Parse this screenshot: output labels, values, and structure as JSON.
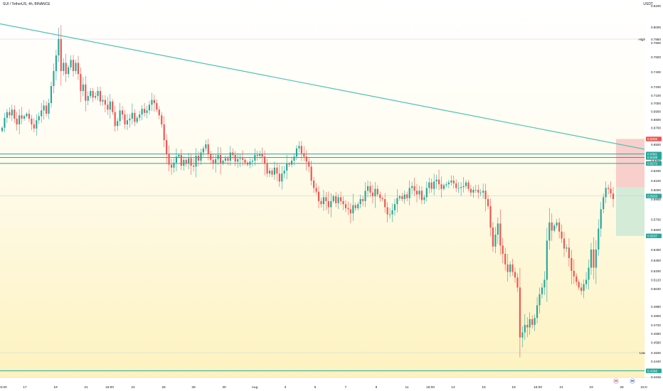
{
  "header": {
    "symbol": "SUI / TetherUS, 4h, BINANCE",
    "currency": "USDT"
  },
  "chart_data": {
    "type": "candlestick",
    "x_tick_labels": [
      "5:00",
      "17",
      "19",
      "21",
      "15:00",
      "24",
      "26",
      "28",
      "30",
      "Aug",
      "3",
      "5",
      "7",
      "9",
      "11",
      "15:00",
      "14",
      "16",
      "18",
      "15:00",
      "21",
      "23",
      "25",
      "15:0"
    ],
    "y_tick_labels": [
      "0.8200",
      "0.8000",
      "0.7850",
      "0.7800",
      "0.7600",
      "0.7400",
      "0.7200",
      "0.7100",
      "0.7000",
      "0.6900",
      "0.6800",
      "0.6700",
      "0.6500",
      "0.6400",
      "0.6300",
      "0.6200",
      "0.6100",
      "0.6000",
      "0.5900",
      "0.5700",
      "0.5600",
      "0.5400",
      "0.5300",
      "0.5200",
      "0.5120",
      "0.5040",
      "0.4880",
      "0.4800",
      "0.4720",
      "0.4650",
      "0.4580",
      "0.4500",
      "0.4440",
      "0.4370",
      "0.4315"
    ],
    "y_range": [
      0.4315,
      0.82
    ],
    "markers": {
      "high": {
        "label": "High",
        "value": 0.785
      },
      "low": {
        "label": "Low",
        "value": 0.45
      }
    },
    "price_badges": [
      {
        "value": "0.6565",
        "color": "#ef5350"
      },
      {
        "value": "0.6381",
        "color": "#26a69a"
      },
      {
        "value": "0.6339",
        "color": "#26a69a"
      },
      {
        "value": "0.6272",
        "color": "#26a69a"
      },
      {
        "value": "0.5933",
        "color": "#26a69a"
      },
      {
        "value": "0.5537",
        "color": "#26a69a"
      },
      {
        "value": "0.4366",
        "color": "#26a69a"
      }
    ],
    "position": {
      "entry": 0.6025,
      "stop": 0.6565,
      "target": 0.5537
    },
    "horizontal_levels": [
      0.6381,
      0.6339,
      0.6272,
      0.4366
    ],
    "trendline": {
      "start_value": 0.803,
      "end_value": 0.644
    },
    "colors": {
      "up": "#26a69a",
      "down": "#ef5350",
      "trendline": "#4ec2b6",
      "level": "#26a69a",
      "stop_zone": "#f7c7c5",
      "target_zone": "#cfe9d6"
    },
    "closes": [
      0.67,
      0.682,
      0.689,
      0.685,
      0.692,
      0.681,
      0.674,
      0.685,
      0.681,
      0.684,
      0.687,
      0.681,
      0.674,
      0.669,
      0.679,
      0.684,
      0.691,
      0.697,
      0.687,
      0.7,
      0.721,
      0.741,
      0.762,
      0.785,
      0.741,
      0.752,
      0.737,
      0.746,
      0.756,
      0.741,
      0.752,
      0.737,
      0.715,
      0.723,
      0.703,
      0.709,
      0.715,
      0.707,
      0.709,
      0.715,
      0.702,
      0.704,
      0.698,
      0.692,
      0.702,
      0.689,
      0.672,
      0.678,
      0.691,
      0.686,
      0.674,
      0.679,
      0.681,
      0.688,
      0.677,
      0.682,
      0.686,
      0.693,
      0.688,
      0.691,
      0.698,
      0.704,
      0.7,
      0.692,
      0.685,
      0.674,
      0.655,
      0.638,
      0.626,
      0.623,
      0.628,
      0.635,
      0.637,
      0.625,
      0.631,
      0.627,
      0.633,
      0.625,
      0.624,
      0.636,
      0.63,
      0.64,
      0.645,
      0.65,
      0.638,
      0.631,
      0.627,
      0.632,
      0.637,
      0.627,
      0.63,
      0.633,
      0.63,
      0.64,
      0.637,
      0.629,
      0.632,
      0.633,
      0.631,
      0.628,
      0.626,
      0.629,
      0.63,
      0.637,
      0.636,
      0.638,
      0.635,
      0.627,
      0.617,
      0.62,
      0.616,
      0.623,
      0.617,
      0.609,
      0.617,
      0.62,
      0.627,
      0.626,
      0.63,
      0.635,
      0.645,
      0.648,
      0.639,
      0.635,
      0.629,
      0.624,
      0.61,
      0.602,
      0.598,
      0.588,
      0.585,
      0.592,
      0.588,
      0.582,
      0.588,
      0.593,
      0.586,
      0.592,
      0.588,
      0.585,
      0.581,
      0.58,
      0.576,
      0.584,
      0.581,
      0.585,
      0.59,
      0.588,
      0.599,
      0.604,
      0.597,
      0.593,
      0.601,
      0.595,
      0.591,
      0.59,
      0.582,
      0.575,
      0.575,
      0.579,
      0.585,
      0.591,
      0.593,
      0.59,
      0.595,
      0.591,
      0.602,
      0.604,
      0.599,
      0.595,
      0.599,
      0.589,
      0.592,
      0.602,
      0.608,
      0.601,
      0.609,
      0.611,
      0.606,
      0.601,
      0.605,
      0.606,
      0.608,
      0.61,
      0.607,
      0.602,
      0.602,
      0.603,
      0.604,
      0.608,
      0.601,
      0.597,
      0.6,
      0.6,
      0.597,
      0.597,
      0.599,
      0.59,
      0.583,
      0.562,
      0.543,
      0.555,
      0.566,
      0.544,
      0.536,
      0.526,
      0.519,
      0.526,
      0.519,
      0.514,
      0.505,
      0.462,
      0.466,
      0.472,
      0.47,
      0.477,
      0.472,
      0.478,
      0.489,
      0.499,
      0.505,
      0.512,
      0.549,
      0.567,
      0.559,
      0.564,
      0.567,
      0.558,
      0.551,
      0.541,
      0.542,
      0.532,
      0.52,
      0.515,
      0.51,
      0.505,
      0.502,
      0.508,
      0.512,
      0.523,
      0.54,
      0.523,
      0.54,
      0.561,
      0.58,
      0.592,
      0.602,
      0.601,
      0.596,
      0.59
    ]
  }
}
